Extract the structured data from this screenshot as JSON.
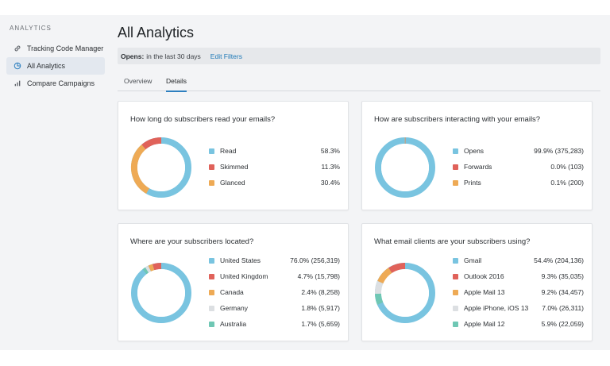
{
  "sidebar": {
    "heading": "ANALYTICS",
    "items": [
      {
        "label": "Tracking Code Manager",
        "icon": "link-icon"
      },
      {
        "label": "All Analytics",
        "icon": "pie-chart-icon"
      },
      {
        "label": "Compare Campaigns",
        "icon": "bar-chart-icon"
      }
    ],
    "active_index": 1
  },
  "page": {
    "title": "All Analytics",
    "filter": {
      "label": "Opens:",
      "value": "in the last 30 days",
      "edit_label": "Edit Filters"
    },
    "tabs": [
      {
        "label": "Overview"
      },
      {
        "label": "Details"
      }
    ],
    "active_tab": 1
  },
  "colors": {
    "blue": "#79c4e0",
    "red": "#e0625a",
    "orange": "#eeaa55",
    "gray": "#dcdfe2",
    "teal": "#6fc7b4",
    "accent": "#2d7fbf",
    "link": "#1f7ab8"
  },
  "cards": [
    {
      "title": "How long do subscribers read your emails?",
      "rows": [
        {
          "label": "Read",
          "value": "58.3%",
          "pct": 58.3,
          "color": "#79c4e0"
        },
        {
          "label": "Skimmed",
          "value": "11.3%",
          "pct": 11.3,
          "color": "#e0625a"
        },
        {
          "label": "Glanced",
          "value": "30.4%",
          "pct": 30.4,
          "color": "#eeaa55"
        }
      ]
    },
    {
      "title": "How are subscribers interacting with your emails?",
      "rows": [
        {
          "label": "Opens",
          "value": "99.9% (375,283)",
          "pct": 99.9,
          "color": "#79c4e0"
        },
        {
          "label": "Forwards",
          "value": "0.0% (103)",
          "pct": 0.03,
          "color": "#e0625a"
        },
        {
          "label": "Prints",
          "value": "0.1% (200)",
          "pct": 0.1,
          "color": "#eeaa55"
        }
      ]
    },
    {
      "title": "Where are your subscribers located?",
      "rows": [
        {
          "label": "United States",
          "value": "76.0% (256,319)",
          "pct": 76.0,
          "color": "#79c4e0"
        },
        {
          "label": "United Kingdom",
          "value": "4.7% (15,798)",
          "pct": 4.7,
          "color": "#e0625a"
        },
        {
          "label": "Canada",
          "value": "2.4% (8,258)",
          "pct": 2.4,
          "color": "#eeaa55"
        },
        {
          "label": "Germany",
          "value": "1.8% (5,917)",
          "pct": 1.8,
          "color": "#dcdfe2"
        },
        {
          "label": "Australia",
          "value": "1.7% (5,659)",
          "pct": 1.7,
          "color": "#6fc7b4"
        }
      ]
    },
    {
      "title": "What email clients are your subscribers using?",
      "rows": [
        {
          "label": "Gmail",
          "value": "54.4% (204,136)",
          "pct": 54.4,
          "color": "#79c4e0"
        },
        {
          "label": "Outlook 2016",
          "value": "9.3% (35,035)",
          "pct": 9.3,
          "color": "#e0625a"
        },
        {
          "label": "Apple Mail 13",
          "value": "9.2% (34,457)",
          "pct": 9.2,
          "color": "#eeaa55"
        },
        {
          "label": "Apple iPhone, iOS 13",
          "value": "7.0% (26,311)",
          "pct": 7.0,
          "color": "#dcdfe2"
        },
        {
          "label": "Apple Mail 12",
          "value": "5.9% (22,059)",
          "pct": 5.9,
          "color": "#6fc7b4"
        }
      ]
    }
  ]
}
